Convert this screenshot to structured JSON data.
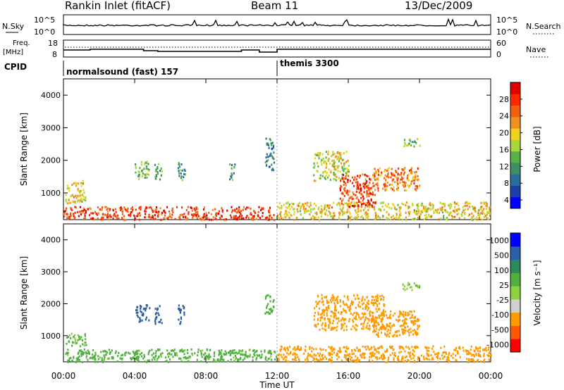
{
  "header": {
    "station": "Rankin Inlet (fitACF)",
    "beam": "Beam 11",
    "date": "13/Dec/2009"
  },
  "noise_panel": {
    "left_label": "N.Sky",
    "right_label": "N.Search",
    "left_ticks": [
      "10^5",
      "10^0"
    ],
    "right_ticks": [
      "10^5",
      "10^0"
    ]
  },
  "freq_panel": {
    "left_label_1": "Freq.",
    "left_label_2": "[MHz]",
    "right_label": "Nave",
    "left_ticks": [
      "18",
      "8"
    ],
    "right_ticks": [
      "60",
      "0"
    ]
  },
  "cpid": {
    "label": "CPID",
    "mode_1": "normalsound (fast) 157",
    "mode_2": "themis 3300",
    "switch_time_hours": 12.0
  },
  "x_axis": {
    "label": "Time UT",
    "ticks": [
      "00:00",
      "04:00",
      "08:00",
      "12:00",
      "16:00",
      "20:00",
      "00:00"
    ],
    "tick_hours": [
      0,
      4,
      8,
      12,
      16,
      20,
      24
    ]
  },
  "colors": {
    "power": [
      "#0000ff",
      "#1e3fa8",
      "#2a6e9a",
      "#3f8f62",
      "#58b04a",
      "#a8d83c",
      "#f0d020",
      "#f09020",
      "#f06010",
      "#ff2a00",
      "#e00000"
    ],
    "velocity": [
      "#ff0000",
      "#ff5a00",
      "#ff9a00",
      "#d0d0d0",
      "#8fd040",
      "#4fb040",
      "#2a8a5a",
      "#2a60a8",
      "#0000ff"
    ]
  },
  "chart_data": [
    {
      "type": "heatmap",
      "title": "Power",
      "xlabel": "Time UT",
      "ylabel": "Slant Range [km]",
      "colorbar_label": "Power [dB]",
      "colorbar_ticks": [
        "4",
        "8",
        "12",
        "16",
        "20",
        "24",
        "28"
      ],
      "xlim_hours": [
        0,
        24
      ],
      "ylim_km": [
        180,
        4500
      ],
      "y_ticks": [
        "1000",
        "2000",
        "3000",
        "4000"
      ],
      "regions": [
        {
          "t0": 0.0,
          "t1": 11.8,
          "r0": 200,
          "r1": 600,
          "value": 28,
          "note": "near-range band"
        },
        {
          "t0": 0.1,
          "t1": 1.2,
          "r0": 700,
          "r1": 1400,
          "value": 20
        },
        {
          "t0": 4.0,
          "t1": 4.8,
          "r0": 1450,
          "r1": 2000,
          "value": 14
        },
        {
          "t0": 5.1,
          "t1": 5.5,
          "r0": 1400,
          "r1": 2000,
          "value": 12
        },
        {
          "t0": 6.4,
          "t1": 6.8,
          "r0": 1400,
          "r1": 2000,
          "value": 12
        },
        {
          "t0": 9.3,
          "t1": 9.6,
          "r0": 1400,
          "r1": 1950,
          "value": 12
        },
        {
          "t0": 11.3,
          "t1": 11.8,
          "r0": 1700,
          "r1": 2700,
          "value": 10
        },
        {
          "t0": 12.0,
          "t1": 24.0,
          "r0": 200,
          "r1": 750,
          "value": 20
        },
        {
          "t0": 14.0,
          "t1": 16.0,
          "r0": 1400,
          "r1": 2300,
          "value": 18
        },
        {
          "t0": 15.5,
          "t1": 17.5,
          "r0": 600,
          "r1": 1600,
          "value": 28
        },
        {
          "t0": 17.3,
          "t1": 20.0,
          "r0": 1100,
          "r1": 1800,
          "value": 24
        },
        {
          "t0": 19.0,
          "t1": 20.0,
          "r0": 2450,
          "r1": 2700,
          "value": 14
        }
      ]
    },
    {
      "type": "heatmap",
      "title": "Velocity",
      "xlabel": "Time UT",
      "ylabel": "Slant Range [km]",
      "colorbar_label": "Velocity [m s⁻¹]",
      "colorbar_ticks": [
        "1000",
        "500",
        "100",
        "25",
        "-25",
        "-100",
        "-500",
        "-1000"
      ],
      "xlim_hours": [
        0,
        24
      ],
      "ylim_km": [
        180,
        4500
      ],
      "y_ticks": [
        "1000",
        "2000",
        "3000",
        "4000"
      ],
      "regions": [
        {
          "t0": 0.0,
          "t1": 12.0,
          "r0": 200,
          "r1": 600,
          "value": 50
        },
        {
          "t0": 0.1,
          "t1": 1.3,
          "r0": 700,
          "r1": 1100,
          "value": 40
        },
        {
          "t0": 4.0,
          "t1": 4.8,
          "r0": 1450,
          "r1": 2000,
          "value": 800
        },
        {
          "t0": 5.1,
          "t1": 5.5,
          "r0": 1400,
          "r1": 2000,
          "value": 700
        },
        {
          "t0": 6.4,
          "t1": 6.8,
          "r0": 1400,
          "r1": 2000,
          "value": 700
        },
        {
          "t0": 11.3,
          "t1": 11.8,
          "r0": 1700,
          "r1": 2300,
          "value": 60
        },
        {
          "t0": 12.0,
          "t1": 24.0,
          "r0": 200,
          "r1": 700,
          "value": -300
        },
        {
          "t0": 14.0,
          "t1": 18.0,
          "r0": 1200,
          "r1": 2300,
          "value": -400
        },
        {
          "t0": 17.3,
          "t1": 20.0,
          "r0": 1000,
          "r1": 1800,
          "value": -200
        },
        {
          "t0": 19.0,
          "t1": 20.0,
          "r0": 2450,
          "r1": 2700,
          "value": 10
        }
      ]
    }
  ]
}
